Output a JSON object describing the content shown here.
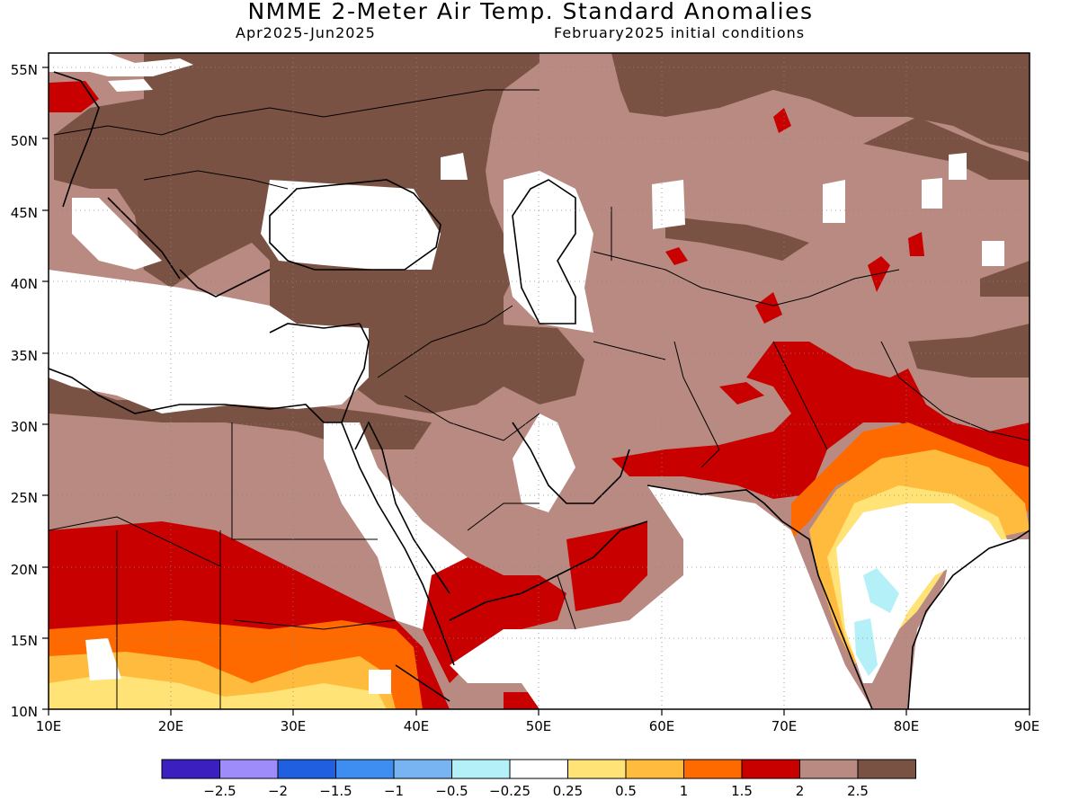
{
  "title": "NMME 2-Meter Air Temp. Standard Anomalies",
  "subtitle_left": "Apr2025-Jun2025",
  "subtitle_right": "February2025 initial conditions",
  "map": {
    "lon_range": [
      10,
      90
    ],
    "lat_range": [
      10,
      56
    ],
    "lon_ticks": [
      "10E",
      "20E",
      "30E",
      "40E",
      "50E",
      "60E",
      "70E",
      "80E",
      "90E"
    ],
    "lat_ticks": [
      "10N",
      "15N",
      "20N",
      "25N",
      "30N",
      "35N",
      "40N",
      "45N",
      "50N",
      "55N"
    ],
    "grid": "dotted"
  },
  "colorbar": {
    "colors": [
      "#3b1fbf",
      "#9e8cfa",
      "#1f5fe0",
      "#3d8ef0",
      "#79b4f2",
      "#b4f0f7",
      "#ffffff",
      "#ffe377",
      "#ffbb3d",
      "#ff6a00",
      "#c80000",
      "#b88a82",
      "#7a5244"
    ],
    "labels": [
      "-2.5",
      "-2",
      "-1.5",
      "-1",
      "-0.5",
      "-0.25",
      "0.25",
      "0.5",
      "1",
      "1.5",
      "2",
      "2.5"
    ]
  },
  "palette": {
    "dark_brown": "#7a5244",
    "light_brown": "#b88a82",
    "red": "#c80000",
    "orange": "#ff6a00",
    "gold": "#ffbb3d",
    "yellow": "#ffe377",
    "cyan": "#b4f0f7",
    "white": "#ffffff"
  }
}
